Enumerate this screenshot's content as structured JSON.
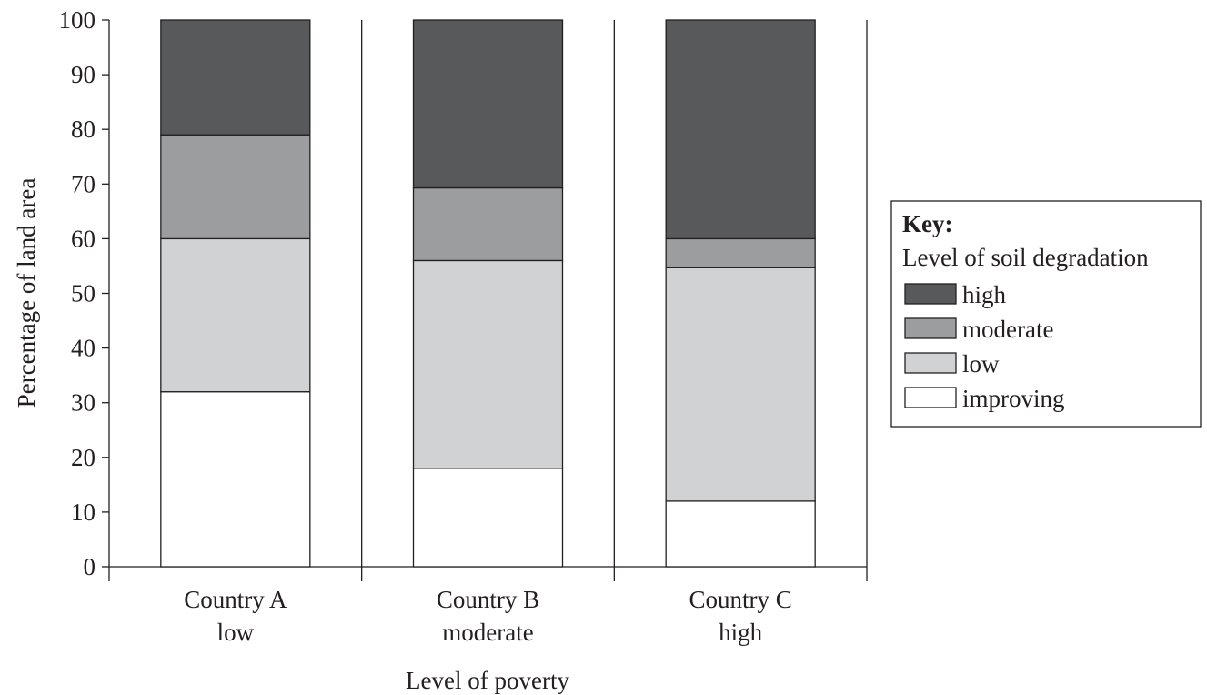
{
  "chart_data": {
    "type": "bar",
    "stacked": true,
    "title": "",
    "xlabel": "Level of poverty",
    "ylabel": "Percentage of land area",
    "ylim": [
      0,
      100
    ],
    "yticks": [
      "0",
      "10",
      "20",
      "30",
      "40",
      "50",
      "60",
      "70",
      "80",
      "90",
      "100"
    ],
    "categories": [
      {
        "name": "Country A",
        "level": "low"
      },
      {
        "name": "Country B",
        "level": "moderate"
      },
      {
        "name": "Country C",
        "level": "high"
      }
    ],
    "series": [
      {
        "name": "improving",
        "color": "#ffffff",
        "values": [
          32,
          18,
          12
        ]
      },
      {
        "name": "low",
        "color": "#d1d2d4",
        "values": [
          28,
          38,
          42.7
        ]
      },
      {
        "name": "moderate",
        "color": "#9c9d9f",
        "values": [
          19,
          13.3,
          5.3
        ]
      },
      {
        "name": "high",
        "color": "#58595b",
        "values": [
          21,
          30.7,
          40
        ]
      }
    ],
    "legend": {
      "title": "Key:",
      "subtitle": "Level of soil degradation",
      "placement": "right",
      "items": [
        "high",
        "moderate",
        "low",
        "improving"
      ]
    },
    "grid": false
  }
}
